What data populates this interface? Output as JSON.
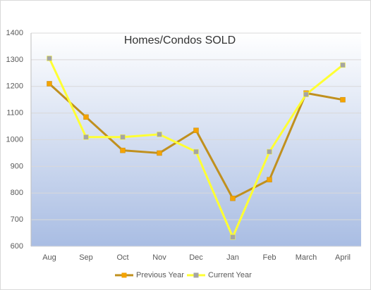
{
  "chart_data": {
    "type": "line",
    "title": "Homes/Condos SOLD",
    "categories": [
      "Aug",
      "Sep",
      "Oct",
      "Nov",
      "Dec",
      "Jan",
      "Feb",
      "March",
      "April"
    ],
    "series": [
      {
        "name": "Previous Year",
        "color": "#c0901e",
        "marker_color": "#f5a300",
        "values": [
          1210,
          1085,
          960,
          950,
          1035,
          780,
          850,
          1175,
          1150
        ]
      },
      {
        "name": "Current Year",
        "color": "#ffff33",
        "marker_color": "#a5a5a5",
        "values": [
          1305,
          1010,
          1010,
          1020,
          955,
          635,
          955,
          1170,
          1280
        ]
      }
    ],
    "ylim": [
      600,
      1400
    ],
    "yticks": [
      600,
      700,
      800,
      900,
      1000,
      1100,
      1200,
      1300,
      1400
    ],
    "grid": true,
    "legend": "bottom"
  }
}
